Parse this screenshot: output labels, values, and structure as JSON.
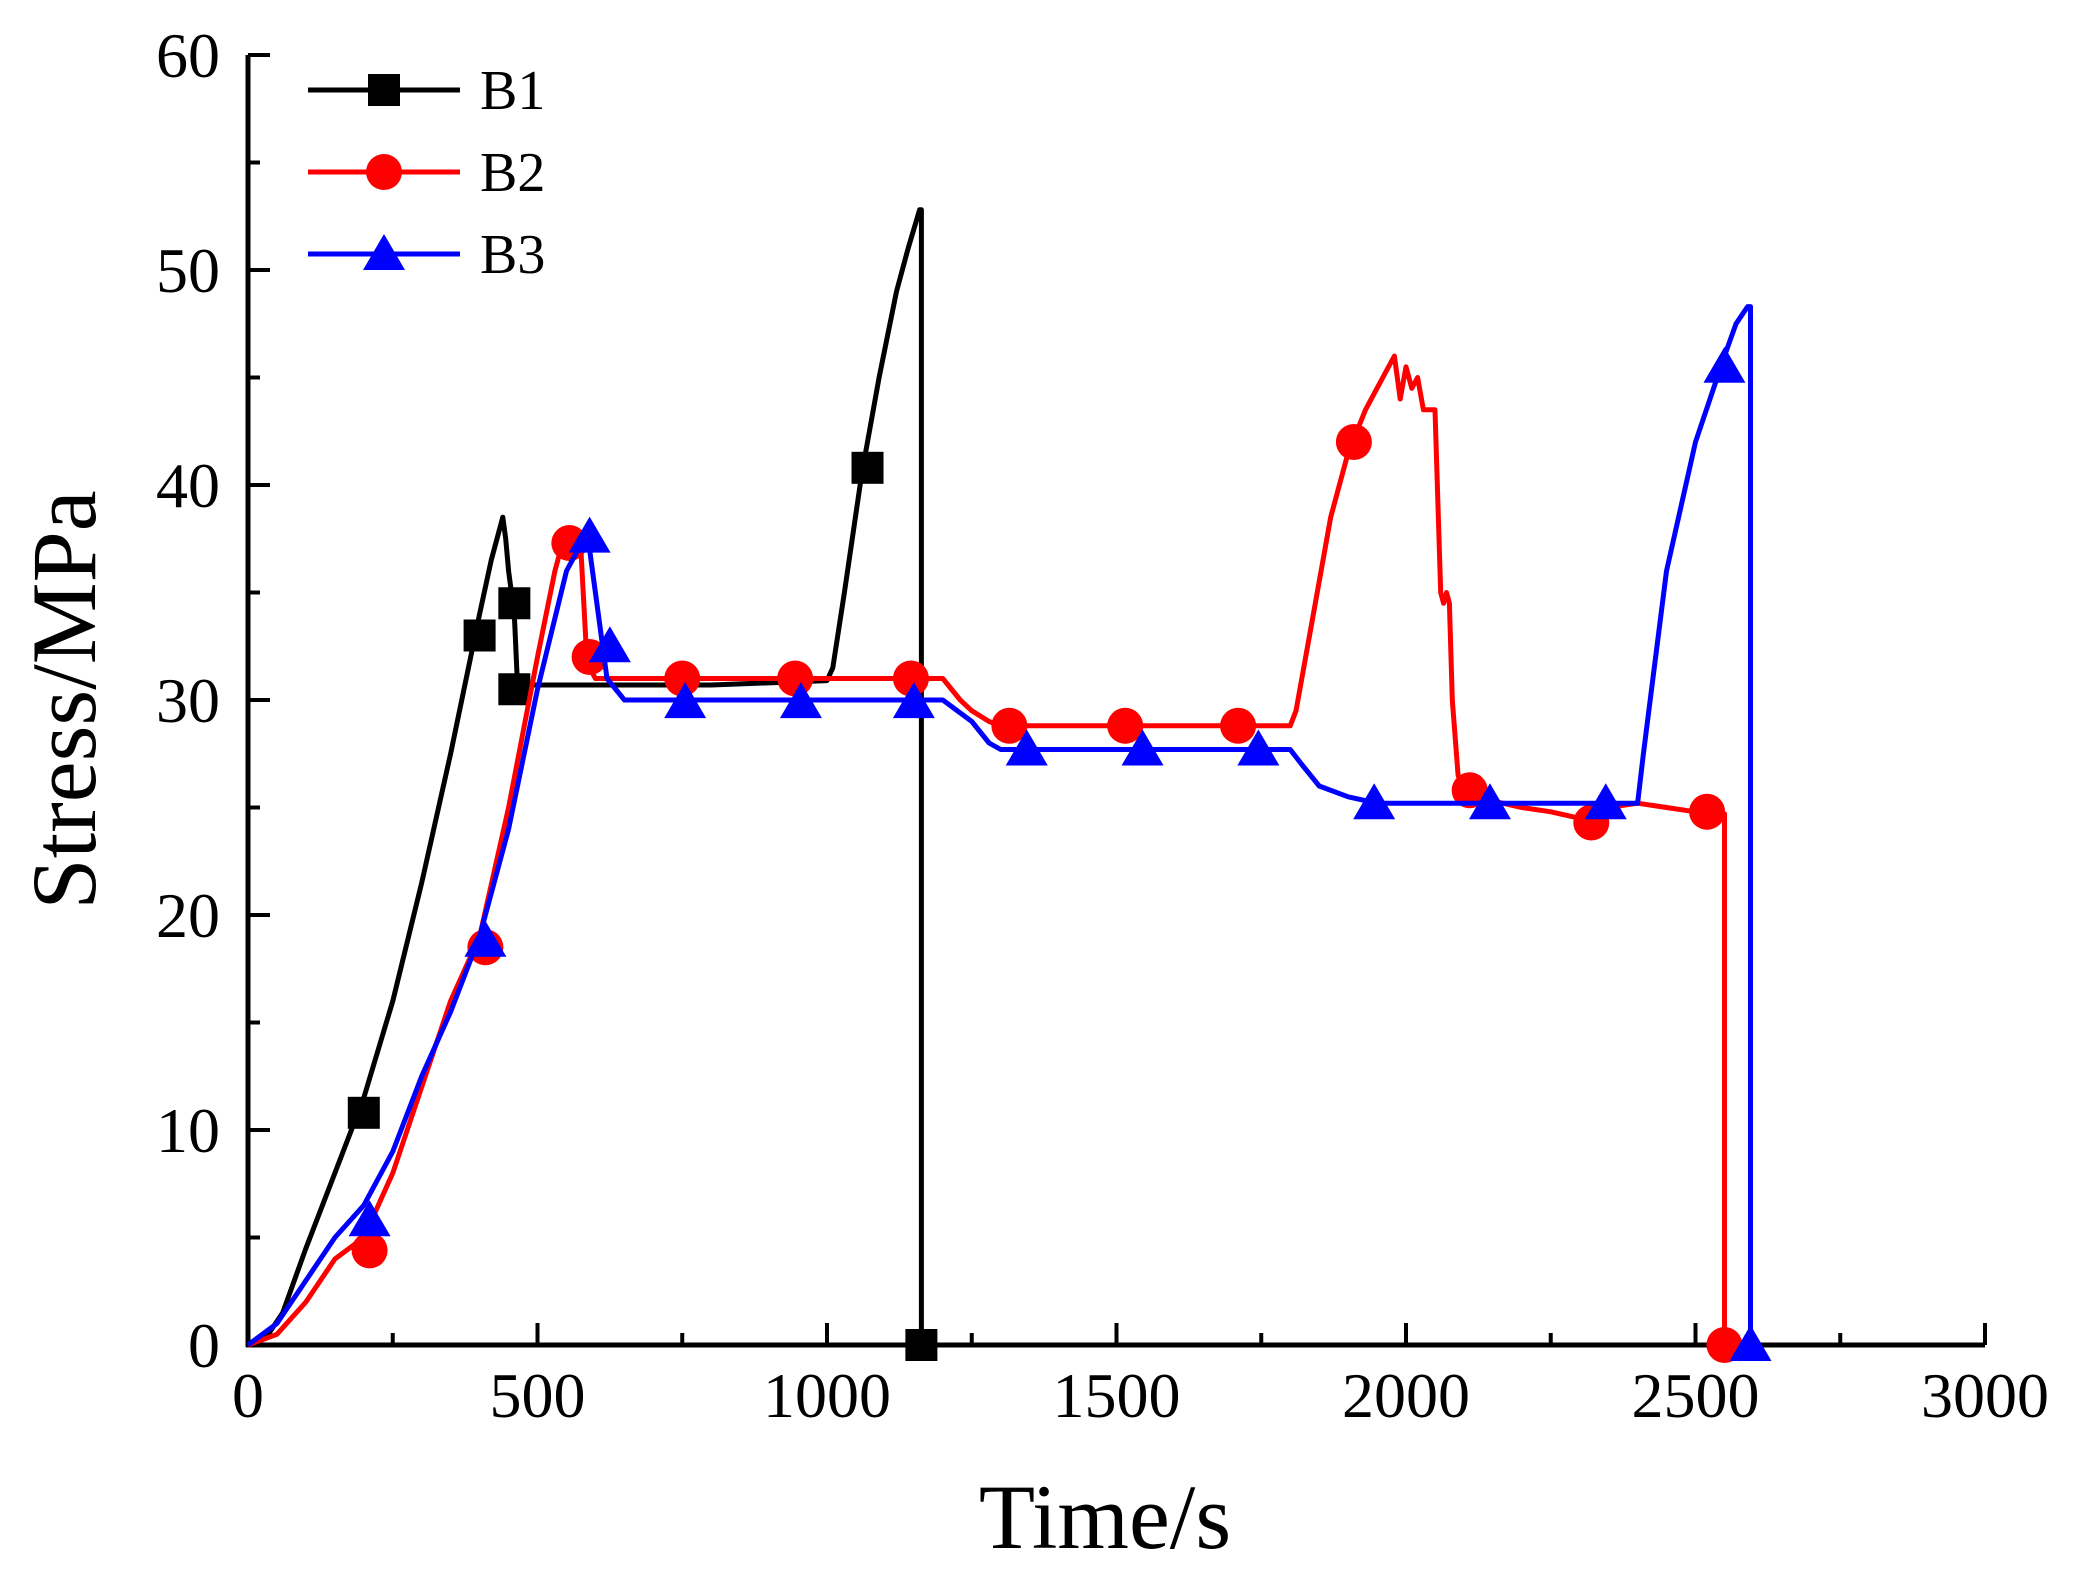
{
  "chart_data": {
    "type": "line",
    "title": "",
    "xlabel": "Time/s",
    "ylabel": "Stress/MPa",
    "xlim": [
      0,
      3000
    ],
    "ylim": [
      0,
      60
    ],
    "xticks": [
      0,
      500,
      1000,
      1500,
      2000,
      2500,
      3000
    ],
    "yticks": [
      0,
      10,
      20,
      30,
      40,
      50,
      60
    ],
    "xtick_labels": [
      "0",
      "500",
      "1000",
      "1500",
      "2000",
      "2500",
      "3000"
    ],
    "ytick_labels": [
      "0",
      "10",
      "20",
      "30",
      "40",
      "50",
      "60"
    ],
    "grid": false,
    "legend_position": "top-left",
    "series": [
      {
        "name": "B1",
        "color": "#000000",
        "marker": "square",
        "x": [
          0,
          30,
          60,
          100,
          150,
          200,
          250,
          300,
          350,
          400,
          420,
          440,
          445,
          450,
          455,
          460,
          465,
          470,
          500,
          600,
          800,
          1000,
          1010,
          1030,
          1060,
          1090,
          1120,
          1140,
          1160,
          1163,
          1163
        ],
        "y": [
          0,
          0.3,
          1.5,
          4.5,
          8.0,
          11.5,
          16.0,
          21.5,
          27.5,
          34.0,
          36.5,
          38.5,
          37.5,
          36.0,
          35.0,
          34.0,
          31.0,
          30.7,
          30.7,
          30.7,
          30.7,
          30.9,
          31.5,
          35.0,
          40.5,
          45.0,
          49.0,
          51.0,
          52.8,
          52.8,
          0
        ],
        "markers_x": [
          200,
          400,
          460,
          460,
          1070,
          1163
        ],
        "markers_y": [
          10.8,
          33.0,
          34.5,
          30.5,
          40.8,
          0
        ]
      },
      {
        "name": "B2",
        "color": "#ff0000",
        "marker": "circle",
        "x": [
          0,
          50,
          100,
          150,
          200,
          250,
          300,
          350,
          400,
          450,
          500,
          530,
          550,
          560,
          575,
          585,
          590,
          600,
          700,
          800,
          1000,
          1150,
          1200,
          1230,
          1250,
          1280,
          1300,
          1400,
          1600,
          1800,
          1810,
          1840,
          1870,
          1900,
          1930,
          1960,
          1980,
          1990,
          2000,
          2010,
          2020,
          2030,
          2040,
          2050,
          2060,
          2065,
          2070,
          2075,
          2080,
          2090,
          2100,
          2120,
          2150,
          2200,
          2250,
          2300,
          2350,
          2400,
          2450,
          2500,
          2530,
          2550,
          2550,
          2555
        ],
        "y": [
          0,
          0.5,
          2.0,
          4.0,
          5.0,
          8.0,
          12.0,
          16.0,
          19.0,
          25.0,
          32.0,
          36.0,
          38.0,
          38.0,
          37.0,
          32.0,
          31.5,
          31.0,
          31.0,
          31.0,
          31.0,
          31.0,
          31.0,
          30.0,
          29.5,
          29.0,
          28.8,
          28.8,
          28.8,
          28.8,
          29.5,
          34.0,
          38.5,
          41.5,
          43.5,
          45.0,
          46.0,
          44.0,
          45.5,
          44.5,
          45.0,
          43.5,
          43.5,
          43.5,
          35.0,
          34.5,
          35.0,
          34.5,
          30.0,
          26.5,
          25.8,
          25.5,
          25.3,
          25.0,
          24.8,
          24.5,
          25.0,
          25.2,
          25.0,
          24.8,
          24.8,
          24.7,
          0,
          0
        ],
        "markers_x": [
          210,
          410,
          555,
          590,
          750,
          945,
          1145,
          1315,
          1515,
          1710,
          1910,
          2110,
          2320,
          2520,
          2550
        ],
        "markers_y": [
          4.4,
          18.5,
          37.3,
          32.0,
          31.0,
          31.0,
          31.0,
          28.8,
          28.8,
          28.8,
          42.0,
          25.8,
          24.3,
          24.8,
          0
        ]
      },
      {
        "name": "B3",
        "color": "#0000ff",
        "marker": "triangle",
        "x": [
          0,
          50,
          100,
          150,
          200,
          250,
          300,
          350,
          400,
          450,
          500,
          550,
          580,
          590,
          600,
          610,
          615,
          620,
          650,
          700,
          900,
          1150,
          1200,
          1250,
          1280,
          1300,
          1400,
          1600,
          1800,
          1820,
          1850,
          1900,
          1950,
          2100,
          2300,
          2400,
          2410,
          2450,
          2500,
          2550,
          2570,
          2590,
          2595,
          2595
        ],
        "y": [
          0,
          1.0,
          3.0,
          5.0,
          6.5,
          9.0,
          12.5,
          15.5,
          19.0,
          24.0,
          30.5,
          36.0,
          37.5,
          37.0,
          35.0,
          33.0,
          32.0,
          31.0,
          30.0,
          30.0,
          30.0,
          30.0,
          30.0,
          29.0,
          28.0,
          27.7,
          27.7,
          27.7,
          27.7,
          27.0,
          26.0,
          25.5,
          25.2,
          25.2,
          25.2,
          25.2,
          27.5,
          36.0,
          42.0,
          46.0,
          47.5,
          48.3,
          48.3,
          0
        ],
        "markers_x": [
          210,
          410,
          590,
          625,
          755,
          955,
          1150,
          1345,
          1545,
          1745,
          1945,
          2145,
          2345,
          2550,
          2595
        ],
        "markers_y": [
          5.8,
          18.8,
          37.6,
          32.5,
          29.9,
          29.9,
          29.9,
          27.7,
          27.7,
          27.7,
          25.2,
          25.2,
          25.2,
          45.5,
          0
        ]
      }
    ]
  }
}
